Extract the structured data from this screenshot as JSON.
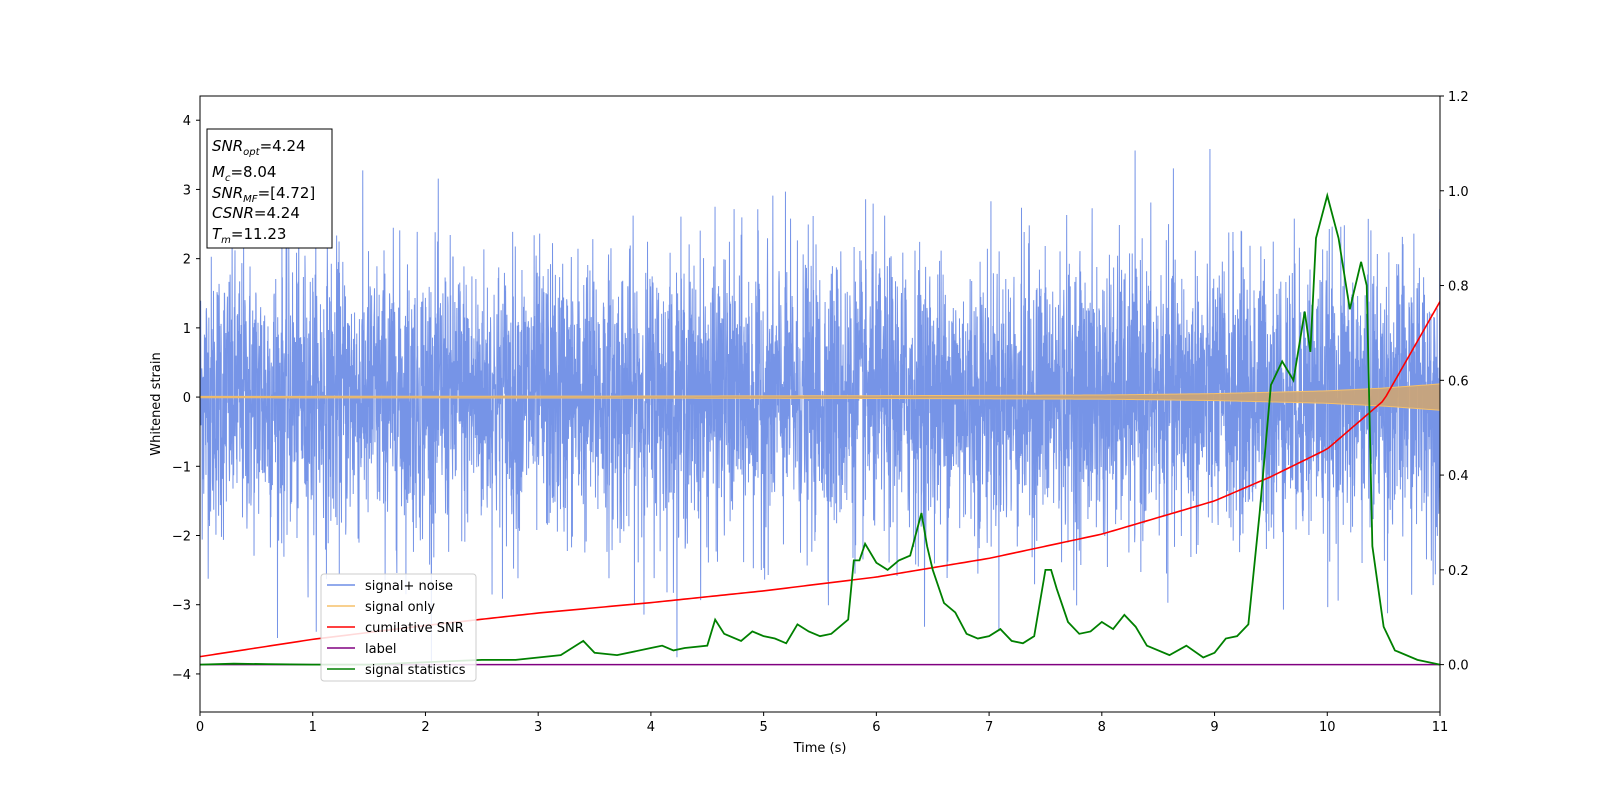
{
  "chart_data": {
    "type": "line",
    "title": "",
    "xlabel": "Time (s)",
    "ylabel": "Whitened strain",
    "xlim": [
      0,
      11
    ],
    "ylim_left": [
      -4.55,
      4.35
    ],
    "ylim_right": [
      -0.1,
      1.2
    ],
    "x_ticks": [
      "0",
      "1",
      "2",
      "3",
      "4",
      "5",
      "6",
      "7",
      "8",
      "9",
      "10",
      "11"
    ],
    "y_ticks_left": [
      "4",
      "3",
      "2",
      "1",
      "0",
      "−1",
      "−2",
      "−3",
      "−4"
    ],
    "y_ticks_right": [
      "1.2",
      "1.0",
      "0.8",
      "0.6",
      "0.4",
      "0.2",
      "0.0"
    ],
    "grid": false,
    "legend_position": "lower-left",
    "info_box": {
      "snr_opt": {
        "name": "SNR",
        "sub": "opt",
        "value": "=4.24"
      },
      "mc": {
        "name": "M",
        "sub": "c",
        "value": "=8.04"
      },
      "snr_mf": {
        "name": "SNR",
        "sub": "MF",
        "value": "=[4.72]"
      },
      "csnr": {
        "name": "CSNR",
        "value": "=4.24"
      },
      "tm": {
        "name": "T",
        "sub": "m",
        "value": "=11.23"
      }
    },
    "series": [
      {
        "name": "signal+ noise",
        "axis": "left",
        "color": "#6f8ee6",
        "description": "Gaussian-like whitened noise between roughly -3 and +3.9 over the full 0–11 s range",
        "approx_range": [
          -4.2,
          3.98
        ]
      },
      {
        "name": "signal only",
        "axis": "left",
        "color": "#f5c06a",
        "description": "chirp oscillation around 0 whose amplitude grows from ~0 to ~0.2 at 11 s",
        "x": [
          0,
          2,
          4,
          6,
          8,
          9,
          10,
          10.5,
          11
        ],
        "amplitude": [
          0.01,
          0.012,
          0.015,
          0.02,
          0.03,
          0.05,
          0.09,
          0.13,
          0.19
        ]
      },
      {
        "name": "cumilative SNR",
        "axis": "left",
        "color": "#ff0000",
        "x": [
          0,
          1,
          2,
          3,
          4,
          5,
          6,
          7,
          8,
          9,
          9.5,
          10,
          10.5,
          11
        ],
        "y": [
          -3.75,
          -3.5,
          -3.3,
          -3.12,
          -2.97,
          -2.8,
          -2.6,
          -2.33,
          -1.98,
          -1.5,
          -1.15,
          -0.75,
          -0.05,
          1.38
        ]
      },
      {
        "name": "label",
        "axis": "right",
        "color": "#800080",
        "x": [
          0,
          11
        ],
        "y": [
          0.0,
          0.0
        ]
      },
      {
        "name": "signal statistics",
        "axis": "right",
        "color": "#008000",
        "x": [
          0,
          0.3,
          0.6,
          1,
          1.5,
          2,
          2.5,
          2.8,
          3,
          3.2,
          3.4,
          3.5,
          3.7,
          4,
          4.1,
          4.2,
          4.3,
          4.5,
          4.57,
          4.65,
          4.8,
          4.9,
          5.0,
          5.1,
          5.2,
          5.3,
          5.4,
          5.5,
          5.6,
          5.75,
          5.8,
          5.85,
          5.9,
          6.0,
          6.1,
          6.2,
          6.3,
          6.4,
          6.45,
          6.5,
          6.6,
          6.7,
          6.8,
          6.9,
          7.0,
          7.1,
          7.2,
          7.3,
          7.4,
          7.5,
          7.55,
          7.6,
          7.7,
          7.8,
          7.9,
          8.0,
          8.1,
          8.2,
          8.3,
          8.4,
          8.6,
          8.75,
          8.9,
          9.0,
          9.1,
          9.2,
          9.3,
          9.4,
          9.5,
          9.6,
          9.7,
          9.8,
          9.85,
          9.9,
          10.0,
          10.1,
          10.2,
          10.3,
          10.35,
          10.4,
          10.5,
          10.6,
          10.8,
          11
        ],
        "y": [
          0.0,
          0.002,
          0.001,
          0.0,
          0.0,
          0.005,
          0.01,
          0.01,
          0.015,
          0.02,
          0.05,
          0.025,
          0.02,
          0.035,
          0.04,
          0.03,
          0.035,
          0.04,
          0.095,
          0.065,
          0.05,
          0.07,
          0.06,
          0.055,
          0.045,
          0.085,
          0.07,
          0.06,
          0.065,
          0.095,
          0.22,
          0.22,
          0.255,
          0.215,
          0.2,
          0.22,
          0.23,
          0.32,
          0.25,
          0.2,
          0.13,
          0.11,
          0.065,
          0.055,
          0.06,
          0.075,
          0.05,
          0.045,
          0.06,
          0.2,
          0.2,
          0.16,
          0.09,
          0.065,
          0.07,
          0.09,
          0.075,
          0.105,
          0.08,
          0.04,
          0.02,
          0.04,
          0.015,
          0.025,
          0.055,
          0.06,
          0.085,
          0.32,
          0.59,
          0.64,
          0.6,
          0.745,
          0.66,
          0.9,
          0.99,
          0.9,
          0.75,
          0.85,
          0.8,
          0.25,
          0.08,
          0.03,
          0.01,
          0.0
        ]
      }
    ]
  }
}
